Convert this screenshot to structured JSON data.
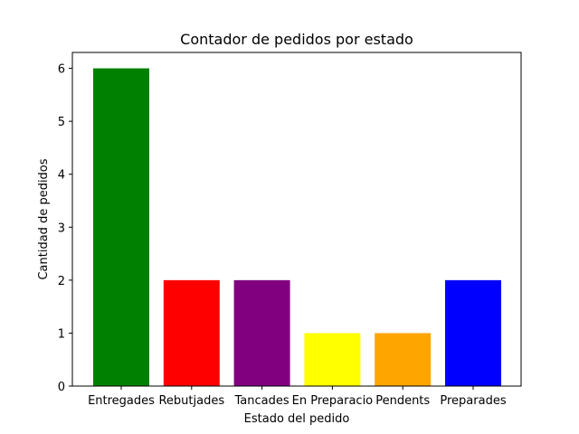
{
  "chart_data": {
    "type": "bar",
    "title": "Contador de pedidos por estado",
    "xlabel": "Estado del pedido",
    "ylabel": "Cantidad de pedidos",
    "categories": [
      "Entregades",
      "Rebutjades",
      "Tancades",
      "En Preparacio",
      "Pendents",
      "Preparades"
    ],
    "values": [
      6,
      2,
      2,
      1,
      1,
      2
    ],
    "colors": [
      "#008000",
      "#ff0000",
      "#800080",
      "#ffff00",
      "#ffa500",
      "#0000ff"
    ],
    "ylim": [
      0,
      6.3
    ],
    "yticks": [
      0,
      1,
      2,
      3,
      4,
      5,
      6
    ],
    "grid": false,
    "legend": "none"
  }
}
